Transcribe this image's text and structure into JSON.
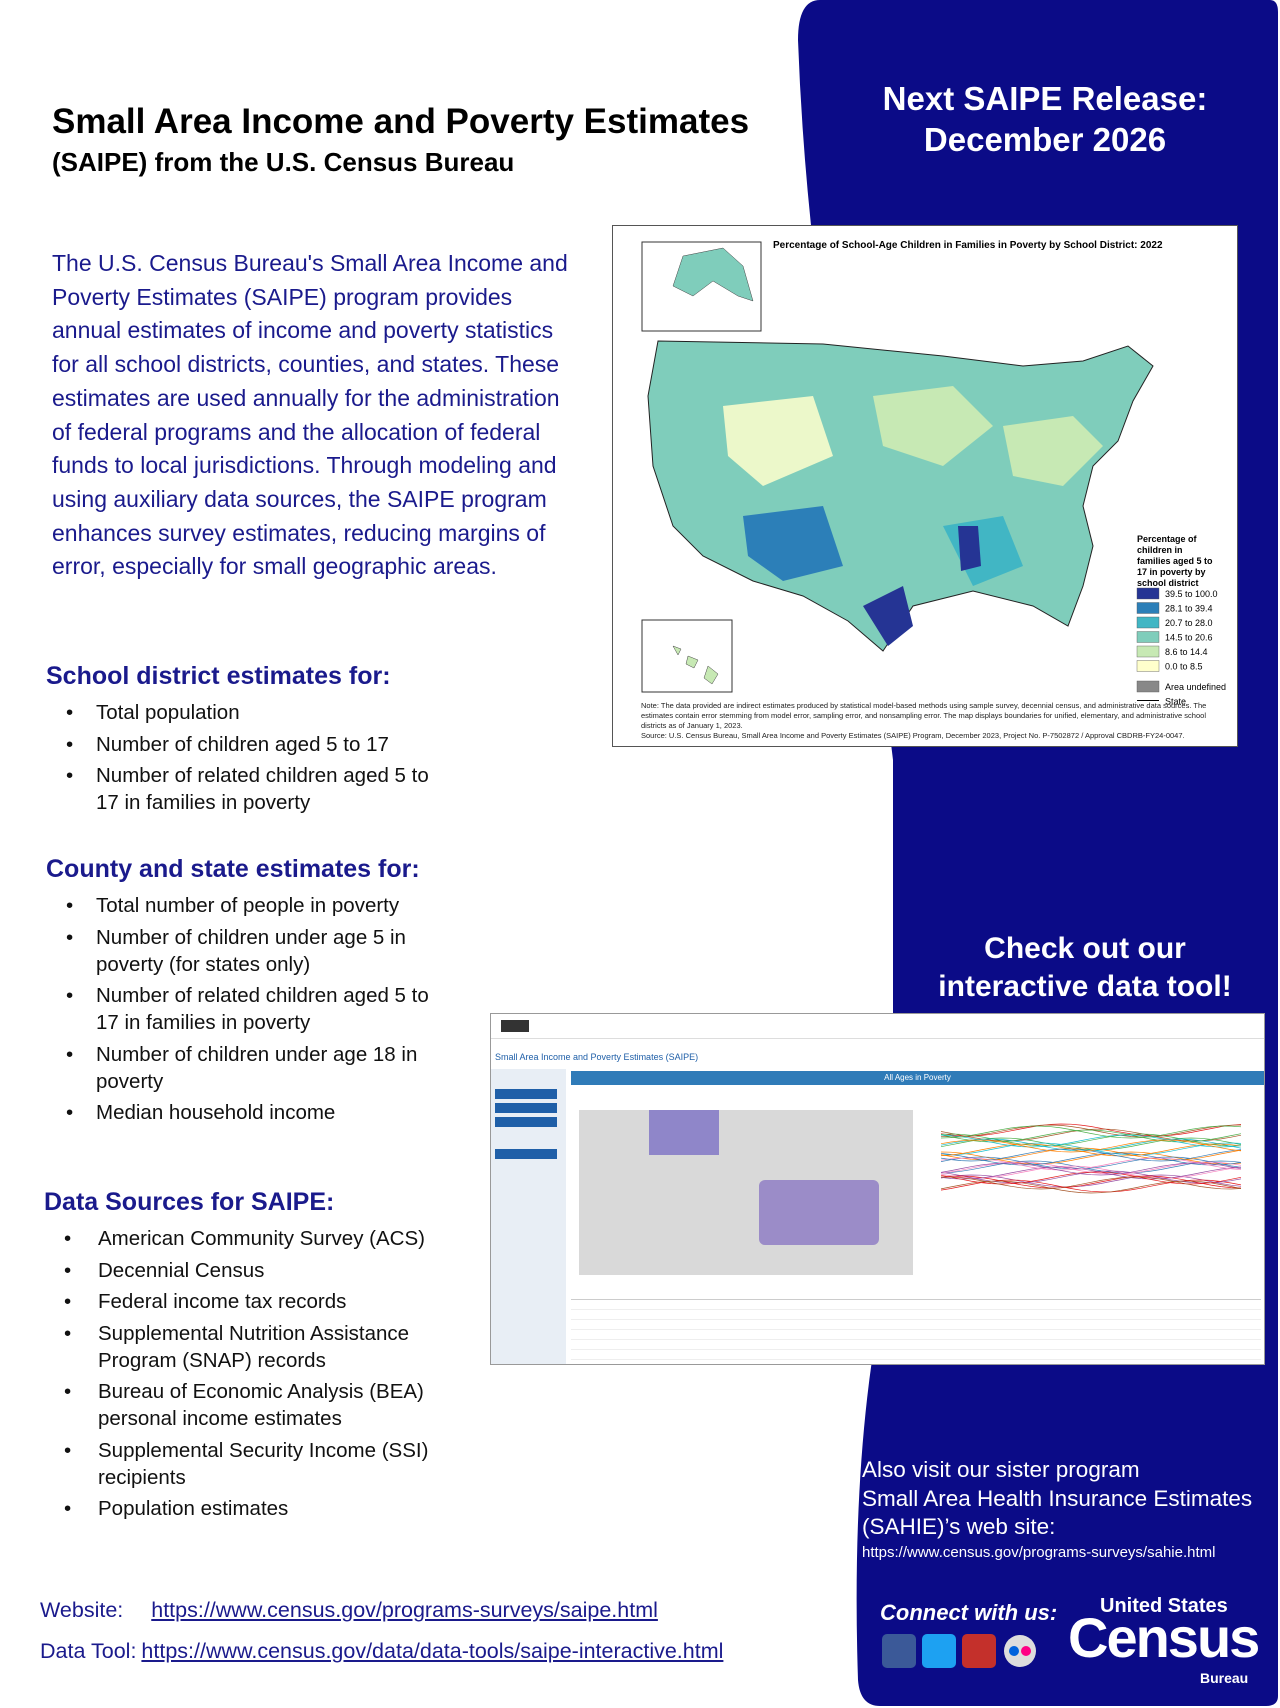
{
  "header": {
    "title": "Small Area Income and Poverty Estimates",
    "subtitle": "(SAIPE) from the U.S. Census Bureau"
  },
  "release": {
    "lines": [
      "Next SAIPE Release:",
      "December 2026"
    ]
  },
  "intro": {
    "text": "The U.S. Census Bureau's Small Area Income and Poverty Estimates (SAIPE) program provides annual estimates of income and poverty statistics for all school districts, counties, and states. These estimates are used annually for the administration of federal programs and the allocation of federal funds to local jurisdictions. Through modeling and using auxiliary data sources, the SAIPE program enhances survey estimates, reducing margins of error, especially for small geographic areas."
  },
  "sections": [
    {
      "heading": "School district estimates for:",
      "items": [
        "Total population",
        "Number of children aged 5 to 17",
        "Number of related children aged 5 to 17 in families in poverty"
      ]
    },
    {
      "heading": "County and state estimates for:",
      "items": [
        "Total number of people in poverty",
        "Number of children under age 5 in poverty (for states only)",
        "Number of related children aged 5 to 17 in families in poverty",
        "Number of children under age 18 in poverty",
        "Median household income"
      ]
    },
    {
      "heading": "Data Sources for SAIPE:",
      "items": [
        "American Community Survey (ACS)",
        "Decennial Census",
        "Federal income tax records",
        "Supplemental Nutrition Assistance Program (SNAP) records",
        "Bureau of Economic Analysis (BEA) personal income estimates",
        "Supplemental Security Income (SSI) recipients",
        "Population estimates"
      ]
    }
  ],
  "map": {
    "title": "Percentage of School-Age Children in Families in Poverty by School District: 2022",
    "legend_title": "Percentage of children in families aged 5 to 17 in poverty by school district",
    "legend": [
      "39.5 to 100.0",
      "28.1 to 39.4",
      "20.7 to 28.0",
      "14.5 to 20.6",
      "8.6 to 14.4",
      "0.0 to 8.5",
      "Area undefined",
      "State"
    ],
    "note": "Note: The data provided are indirect estimates produced by statistical model-based methods using sample survey, decennial census, and administrative data sources. The estimates contain error stemming from model error, sampling error, and nonsampling error. The map displays boundaries for unified, elementary, and administrative school districts as of January 1, 2023.",
    "source": "Source: U.S. Census Bureau, Small Area Income and Poverty Estimates (SAIPE) Program, December 2023, Project No. P-7502872 / Approval CBDRB-FY24-0047."
  },
  "tool": {
    "heading_lines": [
      "Check out our",
      "interactive data tool!"
    ],
    "app_title": "Small Area Income and Poverty Estimates (SAIPE)",
    "panel_title": "All Ages in Poverty"
  },
  "sister": {
    "lines": [
      "Also visit our sister program",
      "Small Area Health Insurance Estimates",
      "(SAHIE)’s web site:"
    ],
    "url": "https://www.census.gov/programs-surveys/sahie.html"
  },
  "links": [
    {
      "label": "Website:",
      "url": "https://www.census.gov/programs-surveys/saipe.html"
    },
    {
      "label": "Data Tool:",
      "url": "https://www.census.gov/data/data-tools/saipe-interactive.html"
    }
  ],
  "logo": {
    "connect": "Connect with us:",
    "top": "United States",
    "brand": "Census",
    "bottom": "Bureau"
  }
}
